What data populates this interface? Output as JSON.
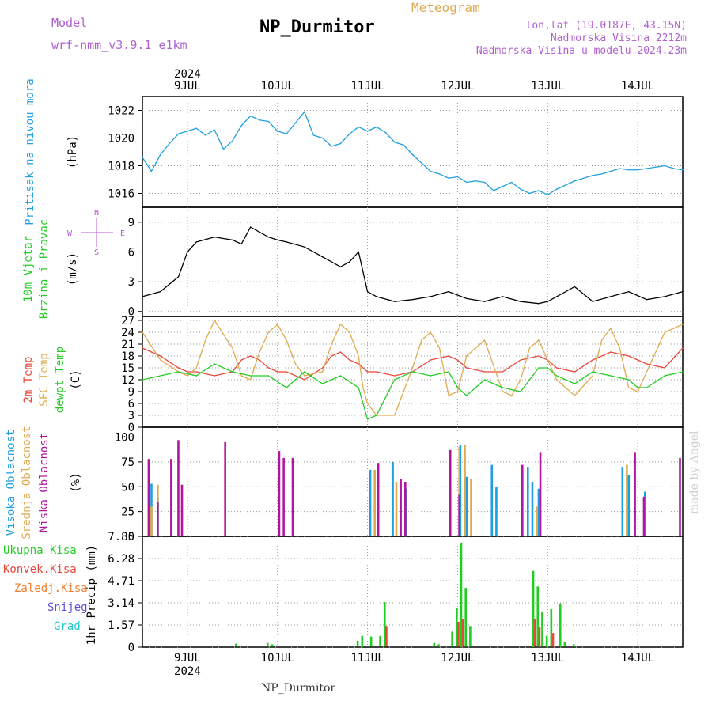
{
  "header": {
    "model_label": "Model",
    "model_name": "wrf-nmm_v3.9.1 e1km",
    "title": "NP_Durmitor",
    "meteogram_label": "Meteogram",
    "coords": "lon,lat (19.0187E, 43.15N)",
    "altitude": "Nadmorska Visina 2212m",
    "model_altitude": "Nadmorska Visina u modelu 2024.23m"
  },
  "footer": {
    "station": "NP_Durmitor",
    "credit": "made by Angel"
  },
  "colors": {
    "pressure": "#1f9fe0",
    "temp2m": "#e8473a",
    "sfc": "#e0aa50",
    "dewpt": "#22cc22",
    "high_cloud": "#1f9fe0",
    "mid_cloud": "#e0aa50",
    "low_cloud": "#b0179e",
    "total_precip": "#22cc22",
    "conv_precip": "#e8473a",
    "wind_label": "#22cc22",
    "wind_compass": "#b65bd6"
  },
  "time_axis": {
    "year": "2024",
    "days": [
      "9JUL",
      "10JUL",
      "11JUL",
      "12JUL",
      "13JUL",
      "14JUL"
    ],
    "day_positions": [
      0.5,
      1.5,
      2.5,
      3.5,
      4.5,
      5.5
    ],
    "range": [
      0,
      6
    ],
    "start_offset": 0.0
  },
  "chart_data": [
    {
      "type": "line",
      "name": "pressure",
      "ylabel_lines": [
        "Pritisak na nivou mora",
        "(hPa)"
      ],
      "ylim": [
        1015,
        1023
      ],
      "yticks": [
        "1016",
        "1018",
        "1020",
        "1022"
      ],
      "ytick_values": [
        1016,
        1018,
        1020,
        1022
      ],
      "series": [
        {
          "x": [
            0.0,
            0.1,
            0.2,
            0.3,
            0.4,
            0.5,
            0.6,
            0.7,
            0.8,
            0.9,
            1.0,
            1.1,
            1.2,
            1.3,
            1.4,
            1.5,
            1.6,
            1.7,
            1.8,
            1.9,
            2.0,
            2.1,
            2.2,
            2.3,
            2.4,
            2.5,
            2.6,
            2.7,
            2.8,
            2.9,
            3.0,
            3.1,
            3.2,
            3.3,
            3.4,
            3.5,
            3.6,
            3.7,
            3.8,
            3.9,
            4.0,
            4.1,
            4.2,
            4.3,
            4.4,
            4.5,
            4.6,
            4.7,
            4.8,
            4.9,
            5.0,
            5.1,
            5.2,
            5.3,
            5.4,
            5.5,
            5.6,
            5.7,
            5.8,
            5.9,
            6.0
          ],
          "y": [
            1018.6,
            1017.6,
            1018.8,
            1019.6,
            1020.3,
            1020.5,
            1020.7,
            1020.2,
            1020.6,
            1019.2,
            1019.8,
            1020.9,
            1021.6,
            1021.3,
            1021.2,
            1020.5,
            1020.3,
            1021.1,
            1021.9,
            1020.2,
            1020.0,
            1019.4,
            1019.6,
            1020.3,
            1020.8,
            1020.5,
            1020.8,
            1020.4,
            1019.7,
            1019.5,
            1018.8,
            1018.2,
            1017.6,
            1017.4,
            1017.1,
            1017.2,
            1016.8,
            1016.9,
            1016.8,
            1016.2,
            1016.5,
            1016.8,
            1016.3,
            1016.0,
            1016.2,
            1015.9,
            1016.3,
            1016.6,
            1016.9,
            1017.1,
            1017.3,
            1017.4,
            1017.6,
            1017.8,
            1017.7,
            1017.7,
            1017.8,
            1017.9,
            1018.0,
            1017.8,
            1017.7
          ],
          "color": "#1f9fe0"
        }
      ]
    },
    {
      "type": "line",
      "name": "wind",
      "ylabel_lines": [
        "10m Vjetar",
        "Brzina i Pravac",
        "(m/s)"
      ],
      "compass": {
        "n": "N",
        "e": "E",
        "w": "W",
        "s": "S"
      },
      "ylim": [
        -0.5,
        10.5
      ],
      "yticks": [
        "0",
        "3",
        "6",
        "9"
      ],
      "ytick_values": [
        0,
        3,
        6,
        9
      ],
      "series": [
        {
          "x": [
            0.0,
            0.2,
            0.4,
            0.5,
            0.6,
            0.8,
            1.0,
            1.1,
            1.2,
            1.3,
            1.4,
            1.5,
            1.6,
            1.8,
            2.0,
            2.2,
            2.3,
            2.4,
            2.5,
            2.6,
            2.8,
            3.0,
            3.2,
            3.4,
            3.6,
            3.8,
            4.0,
            4.2,
            4.4,
            4.5,
            4.6,
            4.8,
            5.0,
            5.2,
            5.4,
            5.6,
            5.8,
            6.0
          ],
          "y": [
            1.5,
            2.0,
            3.5,
            6.0,
            7.0,
            7.5,
            7.2,
            6.8,
            8.5,
            8.0,
            7.5,
            7.2,
            7.0,
            6.5,
            5.5,
            4.5,
            5.0,
            6.0,
            2.0,
            1.5,
            1.0,
            1.2,
            1.5,
            2.0,
            1.3,
            1.0,
            1.5,
            1.0,
            0.8,
            1.0,
            1.5,
            2.5,
            1.0,
            1.5,
            2.0,
            1.2,
            1.5,
            2.0
          ],
          "color": "#000000"
        }
      ]
    },
    {
      "type": "line",
      "name": "temperature",
      "ylabel_lines": [
        "2m Temp",
        "SFC Temp",
        "dewpt Temp",
        "(C)"
      ],
      "ylim": [
        0,
        28
      ],
      "yticks": [
        "0",
        "3",
        "6",
        "9",
        "12",
        "15",
        "18",
        "21",
        "24",
        "27"
      ],
      "ytick_values": [
        0,
        3,
        6,
        9,
        12,
        15,
        18,
        21,
        24,
        27
      ],
      "series": [
        {
          "name": "2m Temp",
          "color": "#e8473a",
          "x": [
            0.0,
            0.2,
            0.4,
            0.5,
            0.6,
            0.8,
            1.0,
            1.1,
            1.2,
            1.3,
            1.4,
            1.5,
            1.6,
            1.8,
            2.0,
            2.1,
            2.2,
            2.3,
            2.4,
            2.5,
            2.6,
            2.8,
            3.0,
            3.2,
            3.4,
            3.5,
            3.6,
            3.8,
            4.0,
            4.2,
            4.4,
            4.5,
            4.6,
            4.8,
            5.0,
            5.2,
            5.4,
            5.5,
            5.6,
            5.8,
            6.0
          ],
          "y": [
            20,
            18,
            15,
            14,
            14,
            13,
            14,
            17,
            18,
            17,
            15,
            14,
            14,
            12,
            15,
            18,
            19,
            17,
            16,
            14,
            14,
            13,
            14,
            17,
            18,
            17,
            15,
            14,
            14,
            17,
            18,
            17,
            15,
            14,
            17,
            19,
            18,
            17,
            16,
            15,
            20
          ]
        },
        {
          "name": "SFC Temp",
          "color": "#e0aa50",
          "x": [
            0.0,
            0.2,
            0.4,
            0.5,
            0.6,
            0.7,
            0.8,
            1.0,
            1.1,
            1.2,
            1.3,
            1.4,
            1.5,
            1.6,
            1.7,
            1.8,
            2.0,
            2.1,
            2.2,
            2.3,
            2.4,
            2.45,
            2.5,
            2.6,
            2.8,
            3.0,
            3.1,
            3.2,
            3.3,
            3.4,
            3.5,
            3.6,
            3.8,
            4.0,
            4.1,
            4.2,
            4.3,
            4.4,
            4.5,
            4.6,
            4.8,
            5.0,
            5.1,
            5.2,
            5.3,
            5.4,
            5.5,
            5.6,
            5.8,
            6.0
          ],
          "y": [
            24,
            17,
            14,
            13,
            15,
            22,
            27,
            20,
            13,
            12,
            19,
            24,
            26,
            22,
            16,
            13,
            14,
            21,
            26,
            24,
            18,
            10,
            6,
            3,
            3,
            15,
            22,
            24,
            20,
            8,
            9,
            18,
            22,
            9,
            8,
            12,
            20,
            22,
            17,
            12,
            8,
            13,
            22,
            25,
            20,
            10,
            9,
            14,
            24,
            26
          ]
        },
        {
          "name": "dewpt Temp",
          "color": "#22cc22",
          "x": [
            0.0,
            0.2,
            0.4,
            0.6,
            0.8,
            1.0,
            1.2,
            1.4,
            1.6,
            1.8,
            2.0,
            2.2,
            2.4,
            2.45,
            2.5,
            2.6,
            2.8,
            3.0,
            3.2,
            3.4,
            3.5,
            3.6,
            3.8,
            4.0,
            4.2,
            4.4,
            4.5,
            4.6,
            4.8,
            5.0,
            5.2,
            5.4,
            5.5,
            5.6,
            5.8,
            6.0
          ],
          "y": [
            12,
            13,
            14,
            13,
            16,
            14,
            13,
            13,
            10,
            14,
            11,
            13,
            10,
            6,
            2,
            3,
            12,
            14,
            13,
            14,
            10,
            8,
            12,
            10,
            9,
            15,
            15,
            13,
            11,
            14,
            13,
            12,
            10,
            10,
            13,
            14
          ]
        }
      ]
    },
    {
      "type": "bar",
      "name": "clouds",
      "ylabel_lines": [
        "Visoka Oblacnost",
        "Srednja Oblacnost",
        "Niska Oblacnost",
        "(%)"
      ],
      "ylim": [
        0,
        110
      ],
      "yticks": [
        "0",
        "25",
        "50",
        "75",
        "100"
      ],
      "ytick_values": [
        0,
        25,
        50,
        75,
        100
      ],
      "series": [
        {
          "name": "Visoka Oblacnost",
          "color": "#1f9fe0",
          "x": [
            0.12,
            0.19,
            2.55,
            2.8,
            2.95,
            3.55,
            3.62,
            3.9,
            3.95,
            4.3,
            4.35,
            4.42,
            5.35,
            5.42,
            5.6
          ],
          "y": [
            53,
            40,
            67,
            75,
            48,
            92,
            60,
            72,
            50,
            70,
            55,
            48,
            70,
            62,
            45
          ]
        },
        {
          "name": "Srednja Oblacnost",
          "color": "#e0aa50",
          "x": [
            0.1,
            0.17,
            2.58,
            2.82,
            3.52,
            3.58,
            3.65,
            4.38,
            5.38
          ],
          "y": [
            30,
            52,
            67,
            55,
            90,
            92,
            58,
            30,
            72
          ]
        },
        {
          "name": "Niska Oblacnost",
          "color": "#b0179e",
          "x": [
            0.05,
            0.15,
            0.3,
            0.38,
            0.42,
            0.9,
            1.5,
            1.55,
            1.65,
            2.6,
            2.85,
            2.9,
            3.4,
            3.5,
            4.2,
            4.4,
            5.45,
            5.55,
            5.95
          ],
          "y": [
            78,
            35,
            78,
            97,
            52,
            95,
            86,
            79,
            79,
            74,
            58,
            55,
            87,
            42,
            72,
            85,
            85,
            40,
            79
          ]
        }
      ]
    },
    {
      "type": "bar",
      "name": "precip",
      "ylabel_lines": [
        "1hr Precip (mm)"
      ],
      "legend": [
        "Ukupna Kisa",
        "Konvek.Kisa",
        "Zaledj.Kisa",
        "Snijeg",
        "Grad"
      ],
      "legend_colors": [
        "#22cc22",
        "#e8473a",
        "#f08030",
        "#5b4fd6",
        "#20c8c8"
      ],
      "ylim": [
        0,
        7.85
      ],
      "yticks": [
        "0",
        "1.57",
        "3.14",
        "4.71",
        "6.28",
        "7.85"
      ],
      "ytick_values": [
        0,
        1.57,
        3.14,
        4.71,
        6.28,
        7.85
      ],
      "series": [
        {
          "name": "Ukupna Kisa",
          "color": "#22cc22",
          "x": [
            1.05,
            1.4,
            1.45,
            2.4,
            2.45,
            2.55,
            2.65,
            2.7,
            3.25,
            3.3,
            3.45,
            3.5,
            3.55,
            3.6,
            3.65,
            4.35,
            4.4,
            4.45,
            4.5,
            4.55,
            4.65,
            4.7,
            4.8
          ],
          "y": [
            0.25,
            0.3,
            0.2,
            0.45,
            0.8,
            0.75,
            0.8,
            3.2,
            0.3,
            0.2,
            1.1,
            2.8,
            7.35,
            4.2,
            1.5,
            5.4,
            4.3,
            2.5,
            0.8,
            2.7,
            3.1,
            0.4,
            0.2
          ]
        },
        {
          "name": "Konvek.Kisa",
          "color": "#e8473a",
          "x": [
            2.7,
            3.5,
            3.55,
            4.35,
            4.4,
            4.55
          ],
          "y": [
            1.5,
            1.8,
            2.0,
            2.0,
            1.4,
            1.0
          ]
        }
      ]
    }
  ]
}
